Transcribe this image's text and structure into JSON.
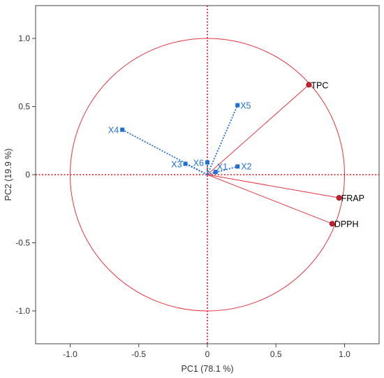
{
  "chart_data": {
    "type": "scatter",
    "subtype": "pca-correlation-biplot",
    "title": "",
    "xlabel": "PC1  (78.1 %)",
    "ylabel": "PC2  (19.9 %)",
    "xlim": [
      -1.25,
      1.25
    ],
    "ylim": [
      -1.25,
      1.25
    ],
    "xticks": [
      -1.0,
      -0.5,
      0,
      0.5,
      1.0
    ],
    "yticks": [
      1.0,
      0.5,
      0,
      -0.5,
      -1.0
    ],
    "xtick_labels": [
      "-1.0",
      "-0.5",
      "0",
      "0.5",
      "1.0"
    ],
    "ytick_labels": [
      "1.0",
      "0.5",
      "0",
      "-0.5",
      "-1.0"
    ],
    "correlation_circle_radius": 1.0,
    "grid": false,
    "zero_lines": "dotted red",
    "variables": [
      {
        "name": "TPC",
        "x": 0.74,
        "y": 0.66
      },
      {
        "name": "FRAP",
        "x": 0.96,
        "y": -0.17
      },
      {
        "name": "DPPH",
        "x": 0.91,
        "y": -0.36
      }
    ],
    "observations": [
      {
        "name": "X1",
        "x": 0.06,
        "y": 0.02
      },
      {
        "name": "X2",
        "x": 0.22,
        "y": 0.06
      },
      {
        "name": "X3",
        "x": -0.16,
        "y": 0.08
      },
      {
        "name": "X4",
        "x": -0.62,
        "y": 0.33
      },
      {
        "name": "X5",
        "x": 0.22,
        "y": 0.51
      },
      {
        "name": "X6",
        "x": 0.0,
        "y": 0.09
      }
    ],
    "colors": {
      "variables": "#e8343f",
      "variable_marker": "#c8202c",
      "observations": "#1f6fd6",
      "frame": "#444444"
    }
  }
}
